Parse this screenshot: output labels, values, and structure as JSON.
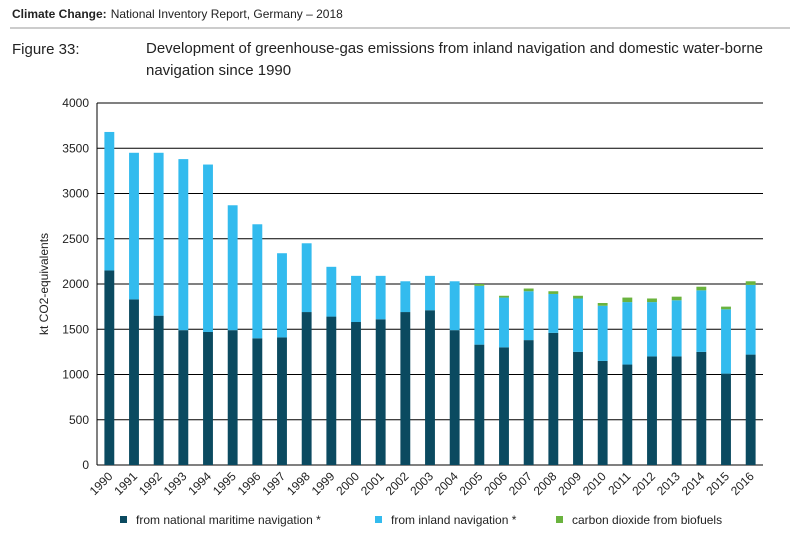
{
  "header": {
    "label": "Climate Change:",
    "text": "National Inventory Report, Germany – 2018"
  },
  "figure": {
    "number": "Figure 33:"
  },
  "chart_data": {
    "type": "stacked-bar",
    "title": "Development of greenhouse-gas emissions from inland navigation and domestic water-borne navigation since 1990",
    "y_label": "kt CO2-equivalents",
    "categories": [
      "1990",
      "1991",
      "1992",
      "1993",
      "1994",
      "1995",
      "1996",
      "1997",
      "1998",
      "1999",
      "2000",
      "2001",
      "2002",
      "2003",
      "2004",
      "2005",
      "2006",
      "2007",
      "2008",
      "2009",
      "2010",
      "2011",
      "2012",
      "2013",
      "2014",
      "2015",
      "2016"
    ],
    "series": [
      {
        "name": "from national maritime navigation *",
        "color": "#0b4a60",
        "values": [
          2150,
          1830,
          1650,
          1490,
          1470,
          1490,
          1400,
          1410,
          1690,
          1640,
          1580,
          1610,
          1690,
          1710,
          1490,
          1330,
          1300,
          1380,
          1460,
          1250,
          1150,
          1110,
          1200,
          1200,
          1250,
          1010,
          1220
        ]
      },
      {
        "name": "from inland navigation *",
        "color": "#33bbee",
        "values": [
          1530,
          1620,
          1800,
          1890,
          1850,
          1380,
          1260,
          930,
          760,
          550,
          510,
          480,
          340,
          380,
          540,
          650,
          550,
          540,
          430,
          590,
          610,
          690,
          600,
          620,
          680,
          710,
          770
        ]
      },
      {
        "name": "carbon dioxide from biofuels",
        "color": "#6ab33e",
        "values": [
          0,
          0,
          0,
          0,
          0,
          0,
          0,
          0,
          0,
          0,
          0,
          0,
          0,
          0,
          0,
          20,
          20,
          30,
          30,
          30,
          30,
          50,
          40,
          40,
          40,
          30,
          40
        ]
      }
    ],
    "ylim": [
      0,
      4000
    ],
    "yticks": [
      0,
      500,
      1000,
      1500,
      2000,
      2500,
      3000,
      3500,
      4000
    ],
    "grid": true
  }
}
